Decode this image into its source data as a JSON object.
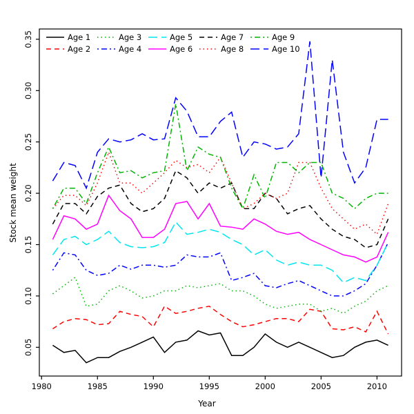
{
  "chart_data": {
    "type": "line",
    "title": "",
    "xlabel": "Year",
    "ylabel": "Stock mean weight",
    "xlim": [
      1979.8,
      2012.2
    ],
    "ylim": [
      0.022,
      0.36
    ],
    "xticks": [
      1980,
      1985,
      1990,
      1995,
      2000,
      2005,
      2010
    ],
    "yticks": [
      0.05,
      0.1,
      0.15,
      0.2,
      0.25,
      0.3,
      0.35
    ],
    "grid": false,
    "legend_position": "top-left-two-rows-five-columns",
    "x": [
      1981,
      1982,
      1983,
      1984,
      1985,
      1986,
      1987,
      1988,
      1989,
      1990,
      1991,
      1992,
      1993,
      1994,
      1995,
      1996,
      1997,
      1998,
      1999,
      2000,
      2001,
      2002,
      2003,
      2004,
      2005,
      2006,
      2007,
      2008,
      2009,
      2010,
      2011
    ],
    "series": [
      {
        "name": "Age 1",
        "color": "#000000",
        "dash": "solid",
        "values": [
          0.052,
          0.045,
          0.047,
          0.035,
          0.04,
          0.04,
          0.046,
          0.05,
          0.055,
          0.06,
          0.045,
          0.055,
          0.057,
          0.066,
          0.062,
          0.064,
          0.042,
          0.042,
          0.05,
          0.063,
          0.055,
          0.05,
          0.055,
          0.05,
          0.045,
          0.04,
          0.042,
          0.05,
          0.055,
          0.057,
          0.052
        ]
      },
      {
        "name": "Age 2",
        "color": "#ff0000",
        "dash": "dashed",
        "values": [
          0.068,
          0.075,
          0.078,
          0.077,
          0.072,
          0.073,
          0.085,
          0.082,
          0.08,
          0.07,
          0.09,
          0.083,
          0.085,
          0.088,
          0.09,
          0.082,
          0.075,
          0.07,
          0.072,
          0.075,
          0.078,
          0.078,
          0.075,
          0.087,
          0.085,
          0.068,
          0.067,
          0.07,
          0.065,
          0.085,
          0.063
        ]
      },
      {
        "name": "Age 3",
        "color": "#00b400",
        "dash": "dotted",
        "values": [
          0.102,
          0.11,
          0.118,
          0.09,
          0.092,
          0.105,
          0.11,
          0.105,
          0.098,
          0.1,
          0.105,
          0.105,
          0.11,
          0.108,
          0.11,
          0.112,
          0.105,
          0.105,
          0.1,
          0.092,
          0.088,
          0.09,
          0.092,
          0.092,
          0.085,
          0.088,
          0.083,
          0.09,
          0.095,
          0.105,
          0.11
        ]
      },
      {
        "name": "Age 4",
        "color": "#0000ff",
        "dash": "dashdot",
        "values": [
          0.125,
          0.142,
          0.14,
          0.125,
          0.12,
          0.122,
          0.13,
          0.126,
          0.13,
          0.13,
          0.128,
          0.13,
          0.14,
          0.138,
          0.138,
          0.142,
          0.115,
          0.118,
          0.122,
          0.11,
          0.108,
          0.112,
          0.115,
          0.11,
          0.105,
          0.1,
          0.1,
          0.105,
          0.112,
          0.13,
          0.152
        ]
      },
      {
        "name": "Age 5",
        "color": "#00e5ee",
        "dash": "longdash",
        "values": [
          0.14,
          0.155,
          0.158,
          0.15,
          0.155,
          0.163,
          0.152,
          0.148,
          0.147,
          0.148,
          0.152,
          0.172,
          0.16,
          0.162,
          0.165,
          0.162,
          0.155,
          0.15,
          0.14,
          0.145,
          0.135,
          0.13,
          0.133,
          0.13,
          0.13,
          0.125,
          0.113,
          0.118,
          0.115,
          0.13,
          0.152
        ]
      },
      {
        "name": "Age 6",
        "color": "#ff00ff",
        "dash": "solid",
        "values": [
          0.155,
          0.178,
          0.175,
          0.165,
          0.17,
          0.198,
          0.183,
          0.175,
          0.157,
          0.157,
          0.165,
          0.19,
          0.192,
          0.175,
          0.19,
          0.168,
          0.167,
          0.165,
          0.175,
          0.17,
          0.163,
          0.16,
          0.162,
          0.155,
          0.15,
          0.145,
          0.14,
          0.138,
          0.133,
          0.138,
          0.162
        ]
      },
      {
        "name": "Age 7",
        "color": "#000000",
        "dash": "dashed",
        "values": [
          0.17,
          0.19,
          0.19,
          0.18,
          0.197,
          0.205,
          0.208,
          0.19,
          0.182,
          0.185,
          0.195,
          0.222,
          0.215,
          0.2,
          0.21,
          0.205,
          0.21,
          0.185,
          0.185,
          0.2,
          0.195,
          0.18,
          0.185,
          0.188,
          0.175,
          0.165,
          0.158,
          0.155,
          0.147,
          0.15,
          0.175
        ]
      },
      {
        "name": "Age 8",
        "color": "#ff0000",
        "dash": "dotted",
        "values": [
          0.185,
          0.198,
          0.198,
          0.188,
          0.21,
          0.24,
          0.21,
          0.21,
          0.2,
          0.21,
          0.22,
          0.232,
          0.225,
          0.228,
          0.22,
          0.235,
          0.21,
          0.185,
          0.19,
          0.2,
          0.195,
          0.2,
          0.23,
          0.23,
          0.205,
          0.185,
          0.175,
          0.165,
          0.17,
          0.16,
          0.19
        ]
      },
      {
        "name": "Age 9",
        "color": "#00b400",
        "dash": "dashdot",
        "values": [
          0.185,
          0.205,
          0.205,
          0.19,
          0.22,
          0.245,
          0.22,
          0.222,
          0.215,
          0.22,
          0.222,
          0.287,
          0.222,
          0.245,
          0.238,
          0.235,
          0.205,
          0.185,
          0.218,
          0.195,
          0.23,
          0.23,
          0.22,
          0.23,
          0.23,
          0.2,
          0.195,
          0.185,
          0.195,
          0.2,
          0.2
        ]
      },
      {
        "name": "Age 10",
        "color": "#0000ff",
        "dash": "longdash",
        "values": [
          0.212,
          0.23,
          0.227,
          0.205,
          0.24,
          0.253,
          0.25,
          0.252,
          0.258,
          0.252,
          0.253,
          0.293,
          0.28,
          0.255,
          0.255,
          0.27,
          0.279,
          0.235,
          0.25,
          0.248,
          0.243,
          0.245,
          0.258,
          0.348,
          0.215,
          0.33,
          0.24,
          0.21,
          0.225,
          0.272,
          0.272
        ]
      }
    ]
  }
}
